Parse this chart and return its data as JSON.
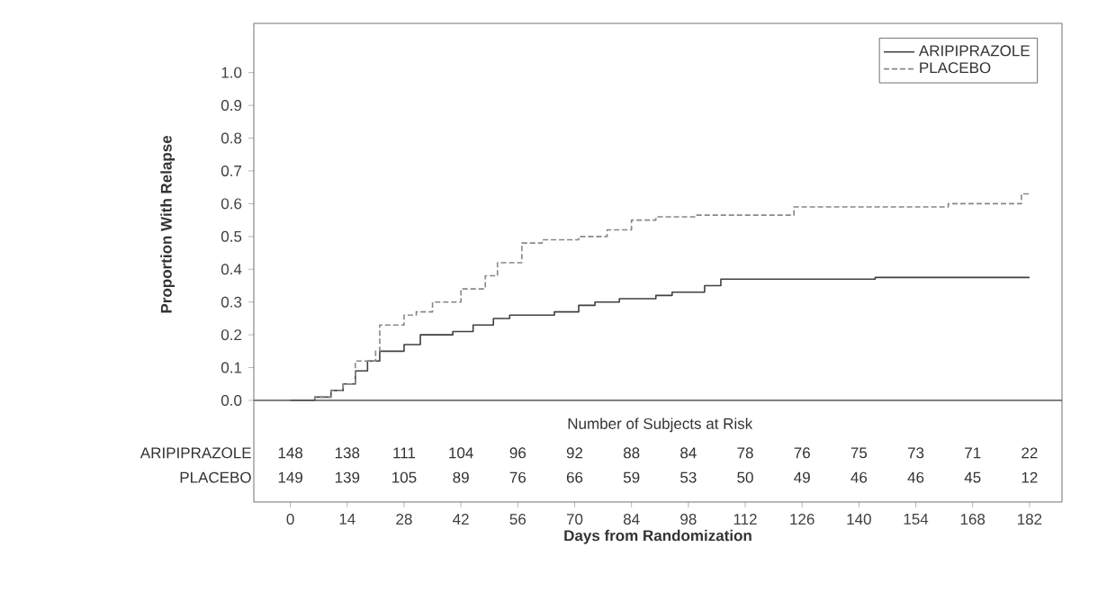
{
  "chart_data": {
    "type": "step",
    "xlabel": "Days from Randomization",
    "ylabel": "Proportion With Relapse",
    "xlim": [
      -9,
      190
    ],
    "ylim": [
      -0.31,
      1.15
    ],
    "xticks": [
      0,
      14,
      28,
      42,
      56,
      70,
      84,
      98,
      112,
      126,
      140,
      154,
      168,
      182
    ],
    "yticks": [
      {
        "value": 0,
        "label": "0.0"
      },
      {
        "value": 0.1,
        "label": "0.1"
      },
      {
        "value": 0.2,
        "label": "0.2"
      },
      {
        "value": 0.3,
        "label": "0.3"
      },
      {
        "value": 0.4,
        "label": "0.4"
      },
      {
        "value": 0.5,
        "label": "0.5"
      },
      {
        "value": 0.6,
        "label": "0.6"
      },
      {
        "value": 0.7,
        "label": "0.7"
      },
      {
        "value": 0.8,
        "label": "0.8"
      },
      {
        "value": 0.9,
        "label": "0.9"
      },
      {
        "value": 1,
        "label": "1.0"
      }
    ],
    "legend": "top right",
    "marker": "none",
    "ref_lines": [
      {
        "axis": "y",
        "value": 0,
        "color": "#555555"
      }
    ],
    "series": [
      {
        "name": "ARIPIPRAZOLE",
        "color": "#404040",
        "line_style": "solid",
        "x": [
          0,
          6,
          10,
          13,
          16,
          19,
          22,
          28,
          32,
          40,
          45,
          50,
          54,
          65,
          71,
          75,
          81,
          90,
          94,
          102,
          106,
          144,
          182
        ],
        "values": [
          0,
          0.01,
          0.03,
          0.05,
          0.09,
          0.12,
          0.15,
          0.17,
          0.2,
          0.21,
          0.23,
          0.25,
          0.26,
          0.27,
          0.29,
          0.3,
          0.31,
          0.32,
          0.33,
          0.35,
          0.37,
          0.375,
          0.375
        ]
      },
      {
        "name": "PLACEBO",
        "color": "#888888",
        "line_style": "dashed",
        "x": [
          0,
          6,
          10,
          13,
          16,
          21,
          22,
          28,
          31,
          35,
          42,
          48,
          51,
          57,
          62,
          71,
          78,
          84,
          90,
          100,
          124,
          162,
          180,
          182
        ],
        "values": [
          0,
          0.01,
          0.03,
          0.05,
          0.12,
          0.15,
          0.23,
          0.26,
          0.27,
          0.3,
          0.34,
          0.38,
          0.42,
          0.48,
          0.49,
          0.5,
          0.52,
          0.55,
          0.56,
          0.565,
          0.59,
          0.6,
          0.63,
          0.63
        ]
      }
    ],
    "annotations": [
      "Number of Subjects at Risk",
      "ARIPIPRAZOLE",
      "148",
      "138",
      "111",
      "104",
      "96",
      "92",
      "88",
      "84",
      "78",
      "76",
      "75",
      "73",
      "71",
      "22",
      "PLACEBO",
      "149",
      "139",
      "105",
      "89",
      "76",
      "66",
      "59",
      "53",
      "50",
      "49",
      "46",
      "46",
      "45",
      "12"
    ]
  }
}
